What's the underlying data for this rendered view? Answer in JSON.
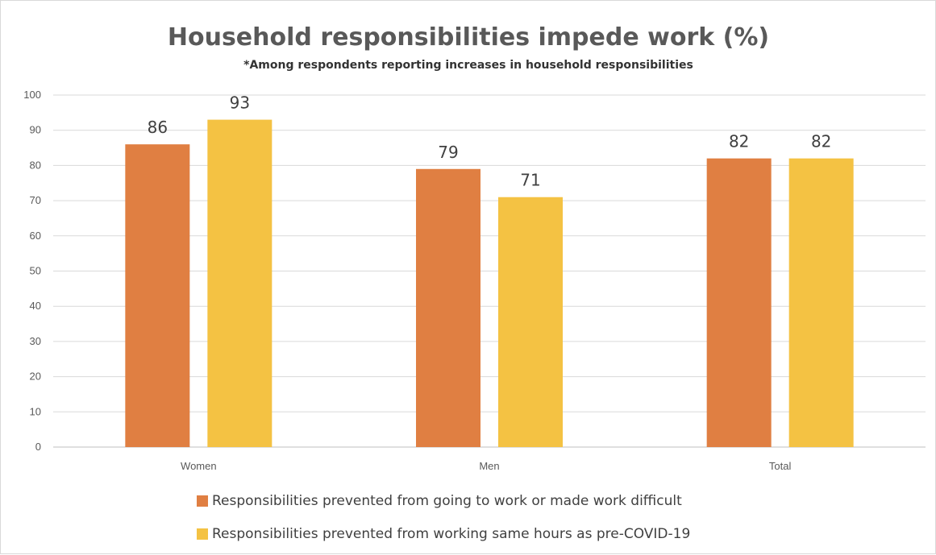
{
  "chart_data": {
    "type": "bar",
    "title": "Household responsibilities impede work (%)",
    "subtitle": "*Among respondents reporting increases in household responsibilities",
    "categories": [
      "Women",
      "Men",
      "Total"
    ],
    "series": [
      {
        "name": "Responsibilities prevented from going to work or made work difficult",
        "values": [
          86,
          79,
          82
        ],
        "color": "#E07F42"
      },
      {
        "name": "Responsibilities prevented from working same hours as pre-COVID-19",
        "values": [
          93,
          71,
          82
        ],
        "color": "#F4C243"
      }
    ],
    "ylim": [
      0,
      100
    ],
    "yticks": [
      0,
      10,
      20,
      30,
      40,
      50,
      60,
      70,
      80,
      90,
      100
    ],
    "grid": true,
    "data_labels": true,
    "legend_position": "bottom"
  }
}
